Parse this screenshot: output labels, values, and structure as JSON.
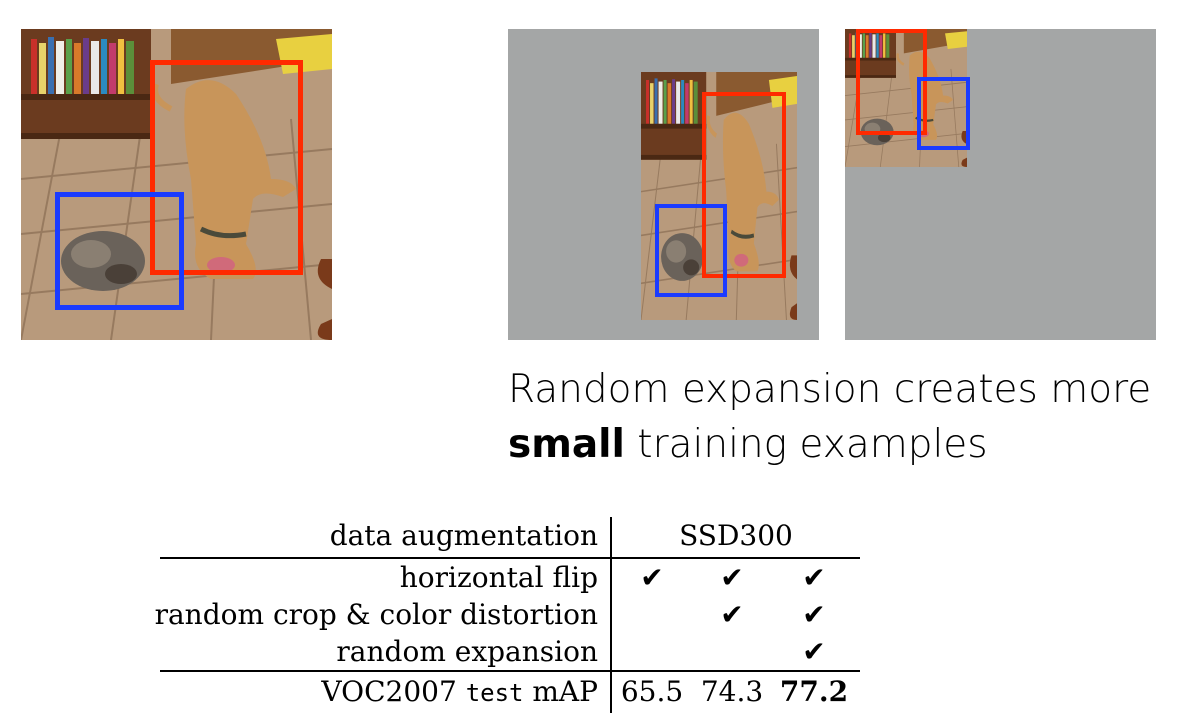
{
  "caption": {
    "line1": "Random expansion creates more",
    "line2_bold": "small",
    "line2_rest": " training examples"
  },
  "table": {
    "header_label": "data augmentation",
    "header_model": "SSD300",
    "rows": [
      {
        "label": "horizontal flip",
        "cells": [
          "✔",
          "✔",
          "✔"
        ]
      },
      {
        "label": "random crop & color distortion",
        "cells": [
          "",
          "✔",
          "✔"
        ]
      },
      {
        "label": "random expansion",
        "cells": [
          "",
          "",
          "✔"
        ]
      }
    ],
    "result_label_pre": "VOC2007 ",
    "result_label_mono": "test",
    "result_label_post": " mAP",
    "results": [
      "65.5",
      "74.3",
      "77.2"
    ],
    "best_result": "77.2"
  },
  "colors": {
    "dog_box": "#ff2a00",
    "cat_box": "#1a3bff",
    "expansion_fill": "#a4a6a6"
  }
}
